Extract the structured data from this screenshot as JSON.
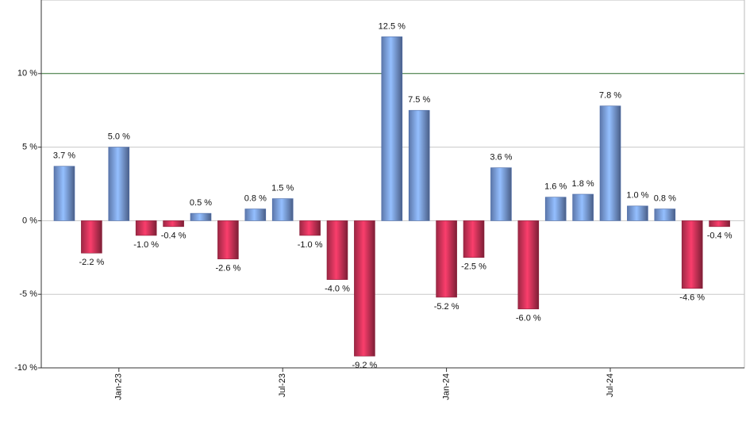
{
  "chart_data": {
    "type": "bar",
    "categories": [
      null,
      null,
      "Jan-23",
      null,
      null,
      null,
      null,
      null,
      "Jul-23",
      null,
      null,
      null,
      null,
      null,
      "Jan-24",
      null,
      null,
      null,
      null,
      null,
      "Jul-24",
      null,
      null,
      null,
      null
    ],
    "values": [
      3.7,
      -2.2,
      5.0,
      -1.0,
      -0.4,
      0.5,
      -2.6,
      0.8,
      1.5,
      -1.0,
      -4.0,
      -9.2,
      12.5,
      7.5,
      -5.2,
      -2.5,
      3.6,
      -6.0,
      1.6,
      1.8,
      7.8,
      1.0,
      0.8,
      -4.6,
      -0.4
    ],
    "value_labels": [
      "3.7 %",
      "-2.2 %",
      "5.0 %",
      "-1.0 %",
      "-0.4 %",
      "0.5 %",
      "-2.6 %",
      "0.8 %",
      "1.5 %",
      "-1.0 %",
      "-4.0 %",
      "-9.2 %",
      "12.5 %",
      "7.5 %",
      "-5.2 %",
      "-2.5 %",
      "3.6 %",
      "-6.0 %",
      "1.6 %",
      "1.8 %",
      "7.8 %",
      "1.0 %",
      "0.8 %",
      "-4.6 %",
      "-0.4 %"
    ],
    "positive_color": "#7b9fe2",
    "negative_color": "#d0345a",
    "ylim": [
      -10,
      15
    ],
    "yticks": [
      {
        "value": -10,
        "label": "-10 %"
      },
      {
        "value": -5,
        "label": "-5 %"
      },
      {
        "value": 0,
        "label": "0 %"
      },
      {
        "value": 5,
        "label": "5 %"
      },
      {
        "value": 10,
        "label": "10 %"
      }
    ],
    "grid": true,
    "reference_line": {
      "value": 10,
      "color": "#2e6b2e"
    }
  }
}
